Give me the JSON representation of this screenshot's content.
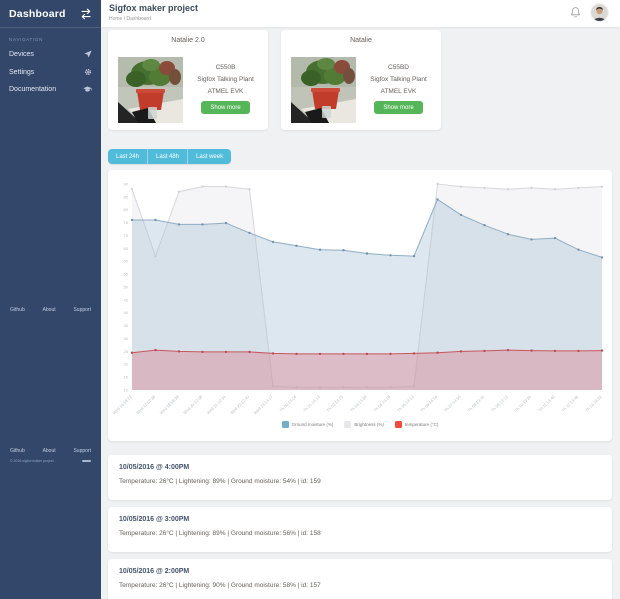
{
  "sidebar": {
    "title": "Dashboard",
    "section_label": "NAVIGATION",
    "items": [
      {
        "label": "Devices",
        "icon": "paper-plane-icon"
      },
      {
        "label": "Settings",
        "icon": "gear-icon"
      },
      {
        "label": "Documentation",
        "icon": "graduation-cap-icon"
      }
    ],
    "footer_links": [
      "Github",
      "About",
      "Support"
    ],
    "fineprint": "© 2016 sigfox maker project"
  },
  "header": {
    "title": "Sigfox maker project",
    "breadcrumb": "Home / Dashboard"
  },
  "devices": [
    {
      "name": "Natalie 2.0",
      "device_id": "C550B",
      "product": "Sigfox Talking Plant",
      "board": "ATMEL EVK",
      "action": "Show more"
    },
    {
      "name": "Natalie",
      "device_id": "C55BD",
      "product": "Sigfox Talking Plant",
      "board": "ATMEL EVK",
      "action": "Show more"
    }
  ],
  "filters": [
    {
      "label": "Last 24h"
    },
    {
      "label": "Last 48h"
    },
    {
      "label": "Last week"
    }
  ],
  "chart_data": {
    "type": "area",
    "title": "",
    "xlabel": "",
    "ylabel": "",
    "ylim": [
      10,
      90
    ],
    "ytick_step": 5,
    "grid": false,
    "legend_position": "bottom",
    "x": [
      "Wed 16:58:22",
      "Wed 17:57:38",
      "Wed 18:58:38",
      "Wed 20:12:08",
      "Wed 21:12:34",
      "Wed 22:12:40",
      "Wed 23:13:17",
      "Th 00:13:04",
      "Th 01:14:13",
      "Th 02:13:23",
      "Th 03:13:38",
      "Th 04:13:18",
      "Th 05:14:13",
      "Th 06:14:54",
      "Th 07:14:50",
      "Th 08:13:15",
      "Th 09:13:13",
      "Th 10:13:25",
      "Th 11:13:40",
      "Th 12:13:46",
      "Th 13:14:02"
    ],
    "series": [
      {
        "name": "Ground moisture (%)",
        "order": 1,
        "values": [
          76,
          76,
          74.3,
          74.3,
          74.8,
          71,
          67.5,
          66,
          64.5,
          64.3,
          63,
          62.3,
          62,
          84,
          78,
          74,
          70.5,
          68.5,
          69,
          64.5,
          61.5
        ],
        "line": "#8fadc4",
        "fill": "rgba(168,195,215,0.40)",
        "marker": "#7193ad",
        "legend": "#72aec6"
      },
      {
        "name": "Brightness (%)",
        "order": 0,
        "values": [
          88,
          62,
          87,
          89,
          89,
          88,
          11.5,
          11,
          11,
          11,
          11,
          11,
          11.5,
          90,
          89,
          88.5,
          88,
          88.5,
          88,
          88.5,
          89
        ],
        "line": "#d8d8dc",
        "fill": "rgba(236,236,240,0.55)",
        "marker": "#d2d2d8",
        "legend": "#e8e8ea"
      },
      {
        "name": "temperature (°C)",
        "order": 2,
        "values": [
          24.5,
          25.5,
          25,
          24.8,
          24.8,
          24.8,
          24.2,
          24,
          24,
          24,
          24,
          24,
          24.2,
          24.5,
          25,
          25.2,
          25.5,
          25.3,
          25.2,
          25.2,
          25.3
        ],
        "line": "#c9565c",
        "fill": "rgba(219,128,140,0.42)",
        "marker": "#b84a50",
        "legend": "#ee4b3e"
      }
    ]
  },
  "events": [
    {
      "timestamp": "10/05/2016 @ 4:00PM",
      "details": "Temperature: 26°C | Lightening: 89% | Ground moisture: 54% | id: 159"
    },
    {
      "timestamp": "10/05/2016 @ 3:00PM",
      "details": "Temperature: 26°C | Lightening: 89% | Ground moisture: 56% | id: 158"
    },
    {
      "timestamp": "10/05/2016 @ 2:00PM",
      "details": "Temperature: 26°C | Lightening: 90% | Ground moisture: 58% | id: 157"
    }
  ],
  "colors": {
    "sidebar_bg": "#33476b",
    "accent_teal": "#51bcda",
    "success_green": "#55b559",
    "moisture": "#72aec6",
    "brightness": "#e8e8ea",
    "temperature": "#ee4b3e"
  }
}
